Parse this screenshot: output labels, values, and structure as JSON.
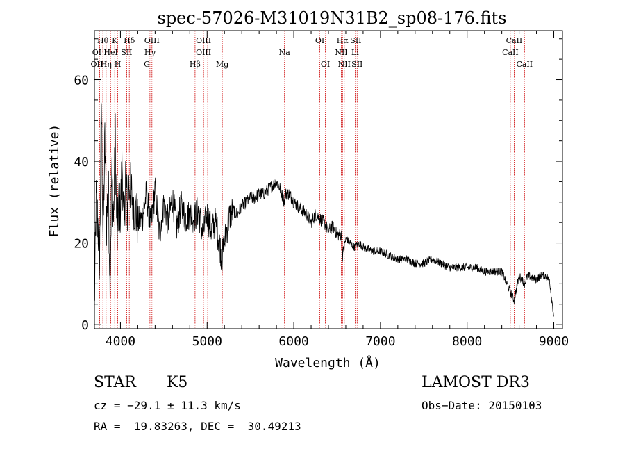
{
  "chart_data": {
    "type": "line",
    "title": "spec-57026-M31019N31B2_sp08-176.fits",
    "xlabel": "Wavelength (Å)",
    "ylabel": "Flux (relative)",
    "xlim": [
      3700,
      9100
    ],
    "ylim": [
      -1,
      72
    ],
    "x_ticks": [
      4000,
      5000,
      6000,
      7000,
      8000,
      9000
    ],
    "x_tick_labels": [
      "4000",
      "5000",
      "6000",
      "7000",
      "8000",
      "9000"
    ],
    "y_ticks": [
      0,
      20,
      40,
      60
    ],
    "y_tick_labels": [
      "0",
      "20",
      "40",
      "60"
    ],
    "grid": false,
    "series": [
      {
        "name": "flux",
        "x": [
          3700,
          3720,
          3740,
          3760,
          3780,
          3800,
          3820,
          3840,
          3860,
          3880,
          3900,
          3920,
          3940,
          3960,
          3980,
          4000,
          4020,
          4040,
          4060,
          4080,
          4100,
          4150,
          4200,
          4250,
          4300,
          4350,
          4400,
          4450,
          4500,
          4550,
          4600,
          4650,
          4700,
          4750,
          4800,
          4850,
          4900,
          4950,
          5000,
          5050,
          5100,
          5150,
          5170,
          5200,
          5250,
          5300,
          5350,
          5400,
          5450,
          5500,
          5550,
          5600,
          5650,
          5700,
          5750,
          5800,
          5850,
          5890,
          5900,
          5950,
          6000,
          6050,
          6100,
          6150,
          6200,
          6250,
          6300,
          6350,
          6400,
          6450,
          6500,
          6550,
          6563,
          6600,
          6650,
          6700,
          6750,
          6800,
          6900,
          7000,
          7100,
          7200,
          7300,
          7400,
          7500,
          7600,
          7700,
          7800,
          7900,
          8000,
          8100,
          8200,
          8300,
          8400,
          8498,
          8542,
          8600,
          8662,
          8700,
          8800,
          8850,
          8900,
          8950,
          9000
        ],
        "y": [
          5,
          30,
          25,
          15,
          55,
          20,
          45,
          25,
          35,
          10,
          38,
          25,
          46,
          20,
          30,
          28,
          40,
          22,
          38,
          28,
          35,
          30,
          25,
          26,
          32,
          24,
          33,
          22,
          30,
          25,
          31,
          24,
          29,
          26,
          27,
          26,
          28,
          22,
          27,
          23,
          25,
          19,
          16,
          20,
          26,
          28,
          27,
          29,
          30,
          31,
          31,
          32,
          32,
          33,
          34,
          35,
          33,
          30,
          32,
          32,
          30,
          29,
          28,
          27,
          25,
          27,
          26,
          25,
          23,
          24,
          22,
          22,
          17,
          21,
          20,
          19,
          20,
          19,
          18,
          18,
          17,
          16,
          16,
          15,
          15,
          16,
          15,
          14,
          14,
          14,
          14,
          13,
          13,
          13,
          8,
          6,
          12,
          10,
          12,
          11,
          12,
          12,
          11,
          2
        ]
      }
    ],
    "line_markers": [
      {
        "label": "Hθ",
        "x": 3797,
        "row": 0
      },
      {
        "label": "K",
        "x": 3934,
        "row": 0
      },
      {
        "label": "Hδ",
        "x": 4102,
        "row": 0
      },
      {
        "label": "OIII",
        "x": 4363,
        "row": 0
      },
      {
        "label": "OIII",
        "x": 4959,
        "row": 0
      },
      {
        "label": "OI",
        "x": 6300,
        "row": 0
      },
      {
        "label": "Hα",
        "x": 6563,
        "row": 0
      },
      {
        "label": "SII",
        "x": 6716,
        "row": 0
      },
      {
        "label": "CaII",
        "x": 8542,
        "row": 0
      },
      {
        "label": "OI",
        "x": 3727,
        "row": 1
      },
      {
        "label": "HeI",
        "x": 3889,
        "row": 1
      },
      {
        "label": "SII",
        "x": 4072,
        "row": 1
      },
      {
        "label": "Hγ",
        "x": 4340,
        "row": 1
      },
      {
        "label": "OIII",
        "x": 4959,
        "row": 1
      },
      {
        "label": "Na",
        "x": 5893,
        "row": 1
      },
      {
        "label": "NII",
        "x": 6548,
        "row": 1
      },
      {
        "label": "Li",
        "x": 6708,
        "row": 1
      },
      {
        "label": "CaII",
        "x": 8498,
        "row": 1
      },
      {
        "label": "OII",
        "x": 3727,
        "row": 2
      },
      {
        "label": "Hη",
        "x": 3835,
        "row": 2
      },
      {
        "label": "H",
        "x": 3968,
        "row": 2
      },
      {
        "label": "G",
        "x": 4305,
        "row": 2
      },
      {
        "label": "Hβ",
        "x": 4861,
        "row": 2
      },
      {
        "label": "Mg",
        "x": 5175,
        "row": 2
      },
      {
        "label": "OI",
        "x": 6364,
        "row": 2
      },
      {
        "label": "NII",
        "x": 6583,
        "row": 2
      },
      {
        "label": "SII",
        "x": 6731,
        "row": 2
      },
      {
        "label": "CaII",
        "x": 8662,
        "row": 2
      }
    ],
    "marker_lines_x": [
      3727,
      3760,
      3797,
      3835,
      3889,
      3934,
      3968,
      4072,
      4102,
      4305,
      4340,
      4363,
      4861,
      4959,
      5007,
      5175,
      5893,
      6300,
      6364,
      6548,
      6563,
      6583,
      6708,
      6716,
      6731,
      8498,
      8542,
      8662
    ],
    "marker_color": "#cc0000",
    "line_color": "#000000"
  },
  "info": {
    "object_class": "STAR",
    "subclass": "K5",
    "redshift": "cz = −29.1 ± 11.3 km/s",
    "coords": "RA =  19.83263, DEC =  30.49213",
    "survey": "LAMOST DR3",
    "obs_date": "Obs−Date: 20150103"
  }
}
